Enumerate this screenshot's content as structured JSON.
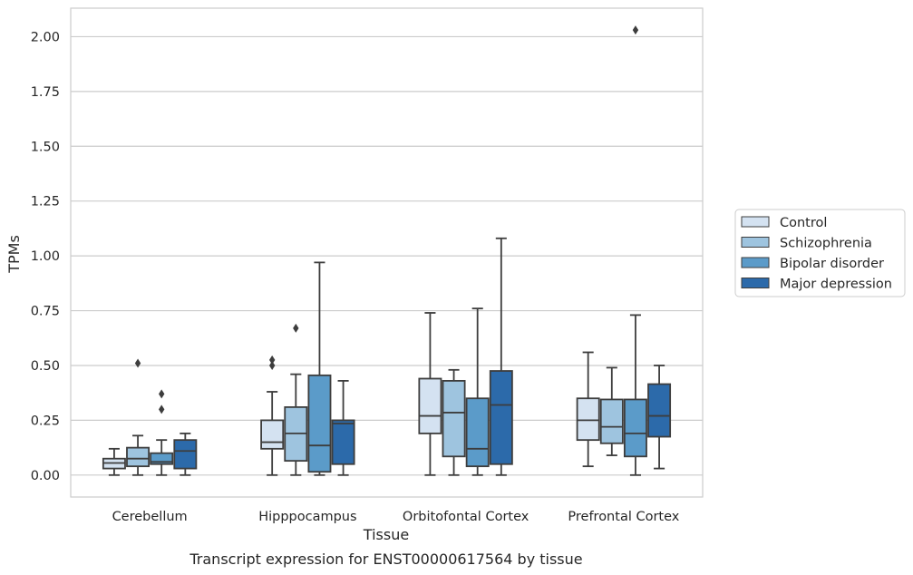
{
  "caption": "Transcript expression for ENST00000617564 by tissue",
  "chart_data": {
    "type": "boxplot",
    "xlabel": "Tissue",
    "ylabel": "TPMs",
    "ylim": [
      -0.1,
      2.13
    ],
    "yticks": [
      0.0,
      0.25,
      0.5,
      0.75,
      1.0,
      1.25,
      1.5,
      1.75,
      2.0
    ],
    "ytick_labels": [
      "0.00",
      "0.25",
      "0.50",
      "0.75",
      "1.00",
      "1.25",
      "1.50",
      "1.75",
      "2.00"
    ],
    "grid": "horizontal",
    "legend_position": "right",
    "categories": [
      "Cerebellum",
      "Hipppocampus",
      "Orbitofontal Cortex",
      "Prefrontal Cortex"
    ],
    "series": [
      {
        "name": "Control",
        "color": "#d4e2f1",
        "boxes": [
          {
            "whislo": 0.0,
            "q1": 0.03,
            "med": 0.055,
            "q3": 0.075,
            "whishi": 0.12,
            "fliers": []
          },
          {
            "whislo": 0.0,
            "q1": 0.12,
            "med": 0.15,
            "q3": 0.25,
            "whishi": 0.38,
            "fliers": [
              0.5,
              0.525
            ]
          },
          {
            "whislo": 0.0,
            "q1": 0.19,
            "med": 0.27,
            "q3": 0.44,
            "whishi": 0.74,
            "fliers": []
          },
          {
            "whislo": 0.04,
            "q1": 0.16,
            "med": 0.25,
            "q3": 0.35,
            "whishi": 0.56,
            "fliers": []
          }
        ]
      },
      {
        "name": "Schizophrenia",
        "color": "#9ec4df",
        "boxes": [
          {
            "whislo": 0.0,
            "q1": 0.04,
            "med": 0.075,
            "q3": 0.125,
            "whishi": 0.18,
            "fliers": [
              0.51
            ]
          },
          {
            "whislo": 0.0,
            "q1": 0.065,
            "med": 0.19,
            "q3": 0.31,
            "whishi": 0.46,
            "fliers": [
              0.67
            ]
          },
          {
            "whislo": 0.0,
            "q1": 0.085,
            "med": 0.285,
            "q3": 0.43,
            "whishi": 0.48,
            "fliers": []
          },
          {
            "whislo": 0.09,
            "q1": 0.145,
            "med": 0.22,
            "q3": 0.345,
            "whishi": 0.49,
            "fliers": []
          }
        ]
      },
      {
        "name": "Bipolar disorder",
        "color": "#5b9bc9",
        "boxes": [
          {
            "whislo": 0.0,
            "q1": 0.05,
            "med": 0.06,
            "q3": 0.1,
            "whishi": 0.16,
            "fliers": [
              0.3,
              0.37
            ]
          },
          {
            "whislo": 0.0,
            "q1": 0.015,
            "med": 0.135,
            "q3": 0.455,
            "whishi": 0.97,
            "fliers": []
          },
          {
            "whislo": 0.0,
            "q1": 0.04,
            "med": 0.12,
            "q3": 0.35,
            "whishi": 0.76,
            "fliers": []
          },
          {
            "whislo": 0.0,
            "q1": 0.085,
            "med": 0.19,
            "q3": 0.345,
            "whishi": 0.73,
            "fliers": [
              2.03
            ]
          }
        ]
      },
      {
        "name": "Major depression",
        "color": "#2c6aaa",
        "boxes": [
          {
            "whislo": 0.0,
            "q1": 0.03,
            "med": 0.11,
            "q3": 0.16,
            "whishi": 0.19,
            "fliers": []
          },
          {
            "whislo": 0.0,
            "q1": 0.05,
            "med": 0.235,
            "q3": 0.25,
            "whishi": 0.43,
            "fliers": []
          },
          {
            "whislo": 0.0,
            "q1": 0.05,
            "med": 0.32,
            "q3": 0.475,
            "whishi": 1.08,
            "fliers": []
          },
          {
            "whislo": 0.03,
            "q1": 0.175,
            "med": 0.27,
            "q3": 0.415,
            "whishi": 0.5,
            "fliers": []
          }
        ]
      }
    ]
  }
}
